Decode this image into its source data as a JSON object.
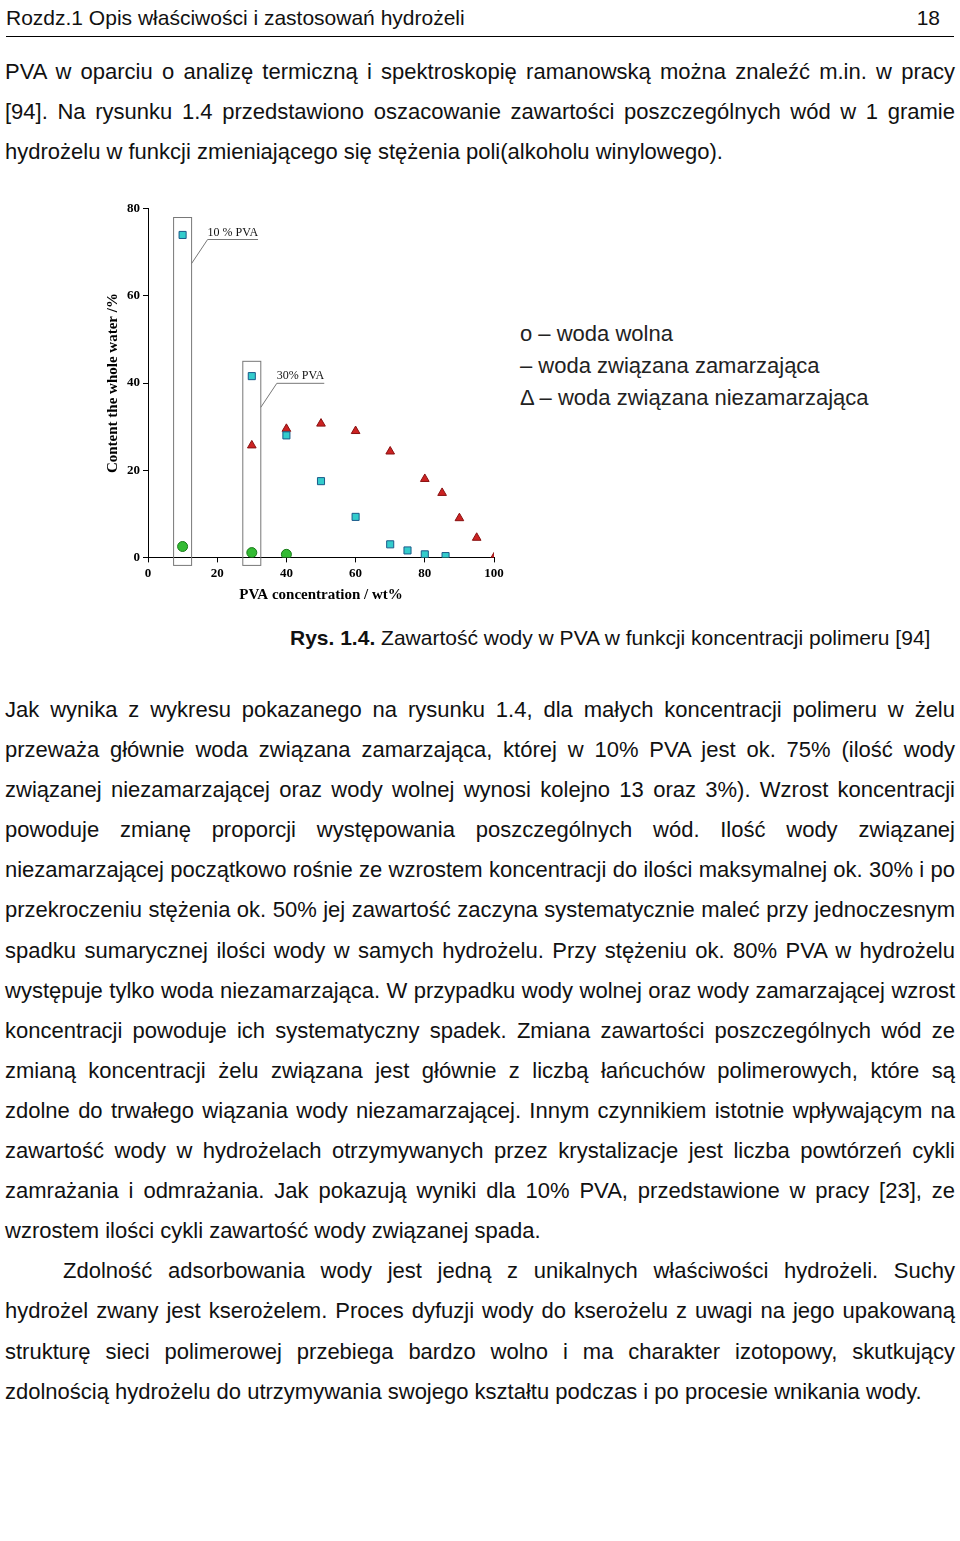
{
  "header": {
    "title": "Rozdz.1 Opis właściwości i zastosowań hydrożeli",
    "page": "18"
  },
  "paragraphs_top": [
    "PVA w oparciu o analizę termiczną i spektroskopię ramanowską można znaleźć m.in. w pracy [94]. Na rysunku 1.4 przedstawiono oszacowanie zawartości poszczególnych wód w 1 gramie hydrożelu w funkcji zmieniającego się stężenia poli(alkoholu winylowego)."
  ],
  "chart_data": {
    "type": "scatter",
    "x_label": "PVA concentration / wt%",
    "y_label": "Content the whole water /%",
    "xlim": [
      0,
      100
    ],
    "xticks": [
      0,
      20,
      40,
      60,
      80,
      100
    ],
    "ylim": [
      0,
      80
    ],
    "yticks": [
      0,
      20,
      40,
      60,
      80
    ],
    "grid": false,
    "series": [
      {
        "name": "o – woda wolna",
        "color": "#33bb33",
        "marker": "circle",
        "x": [
          10,
          30,
          40
        ],
        "values": [
          2.5,
          1.1,
          0.7
        ]
      },
      {
        "name": "– woda związana zamarzająca",
        "color": "#33cccc",
        "marker": "square",
        "x": [
          10,
          30,
          40,
          50,
          60,
          70,
          75,
          80,
          86
        ],
        "values": [
          74,
          41.6,
          28,
          17.5,
          9.3,
          3,
          1.6,
          0.7,
          0.3
        ]
      },
      {
        "name": "Δ – woda związana niezamarzająca",
        "color": "#cc2222",
        "marker": "triangle",
        "x": [
          30,
          40,
          50,
          60,
          70,
          80,
          85,
          90,
          95,
          100
        ],
        "values": [
          25.7,
          29.5,
          30.7,
          29,
          24.3,
          18,
          14.8,
          9,
          4.5,
          0
        ]
      }
    ],
    "annotations": [
      {
        "text": "10 % PVA",
        "x": 10,
        "y": 78
      },
      {
        "text": "30% PVA",
        "x": 30,
        "y": 45
      }
    ]
  },
  "caption": {
    "label": "Rys. 1.4.",
    "text": "Zawartość wody w PVA w funkcji koncentracji polimeru [94]"
  },
  "paragraphs_bottom": [
    "Jak wynika z wykresu pokazanego na rysunku 1.4, dla małych koncentracji polimeru w żelu przeważa głównie woda związana zamarzająca, której w 10% PVA jest ok. 75% (ilość wody związanej niezamarzającej oraz wody wolnej wynosi kolejno 13 oraz 3%). Wzrost koncentracji powoduje zmianę proporcji występowania poszczególnych wód. Ilość wody związanej niezamarzającej początkowo rośnie ze wzrostem koncentracji do ilości maksymalnej ok. 30% i po przekroczeniu stężenia ok. 50% jej zawartość zaczyna systematycznie maleć przy jednoczesnym spadku sumarycznej ilości wody w samych hydrożelu. Przy stężeniu ok. 80% PVA w hydrożelu występuje tylko woda niezamarzająca. W przypadku wody wolnej oraz wody zamarzającej wzrost koncentracji powoduje ich systematyczny spadek. Zmiana zawartości poszczególnych wód ze zmianą koncentracji żelu związana jest głównie z liczbą łańcuchów polimerowych, które są zdolne do trwałego wiązania wody niezamarzającej. Innym czynnikiem istotnie wpływającym na zawartość wody w hydrożelach otrzymywanych przez krystalizacje jest liczba powtórzeń cykli zamrażania i odmrażania. Jak pokazują wyniki dla 10% PVA, przedstawione w pracy [23], ze wzrostem ilości cykli zawartość wody związanej spada.",
    "Zdolność adsorbowania wody jest jedną z unikalnych właściwości hydrożeli. Suchy hydrożel zwany jest kserożelem. Proces dyfuzji wody do kserożelu z uwagi na jego upakowaną strukturę sieci polimerowej przebiega bardzo wolno i ma charakter izotopowy, skutkujący zdolnością hydrożelu do utrzymywania swojego kształtu podczas i po procesie wnikania wody."
  ]
}
